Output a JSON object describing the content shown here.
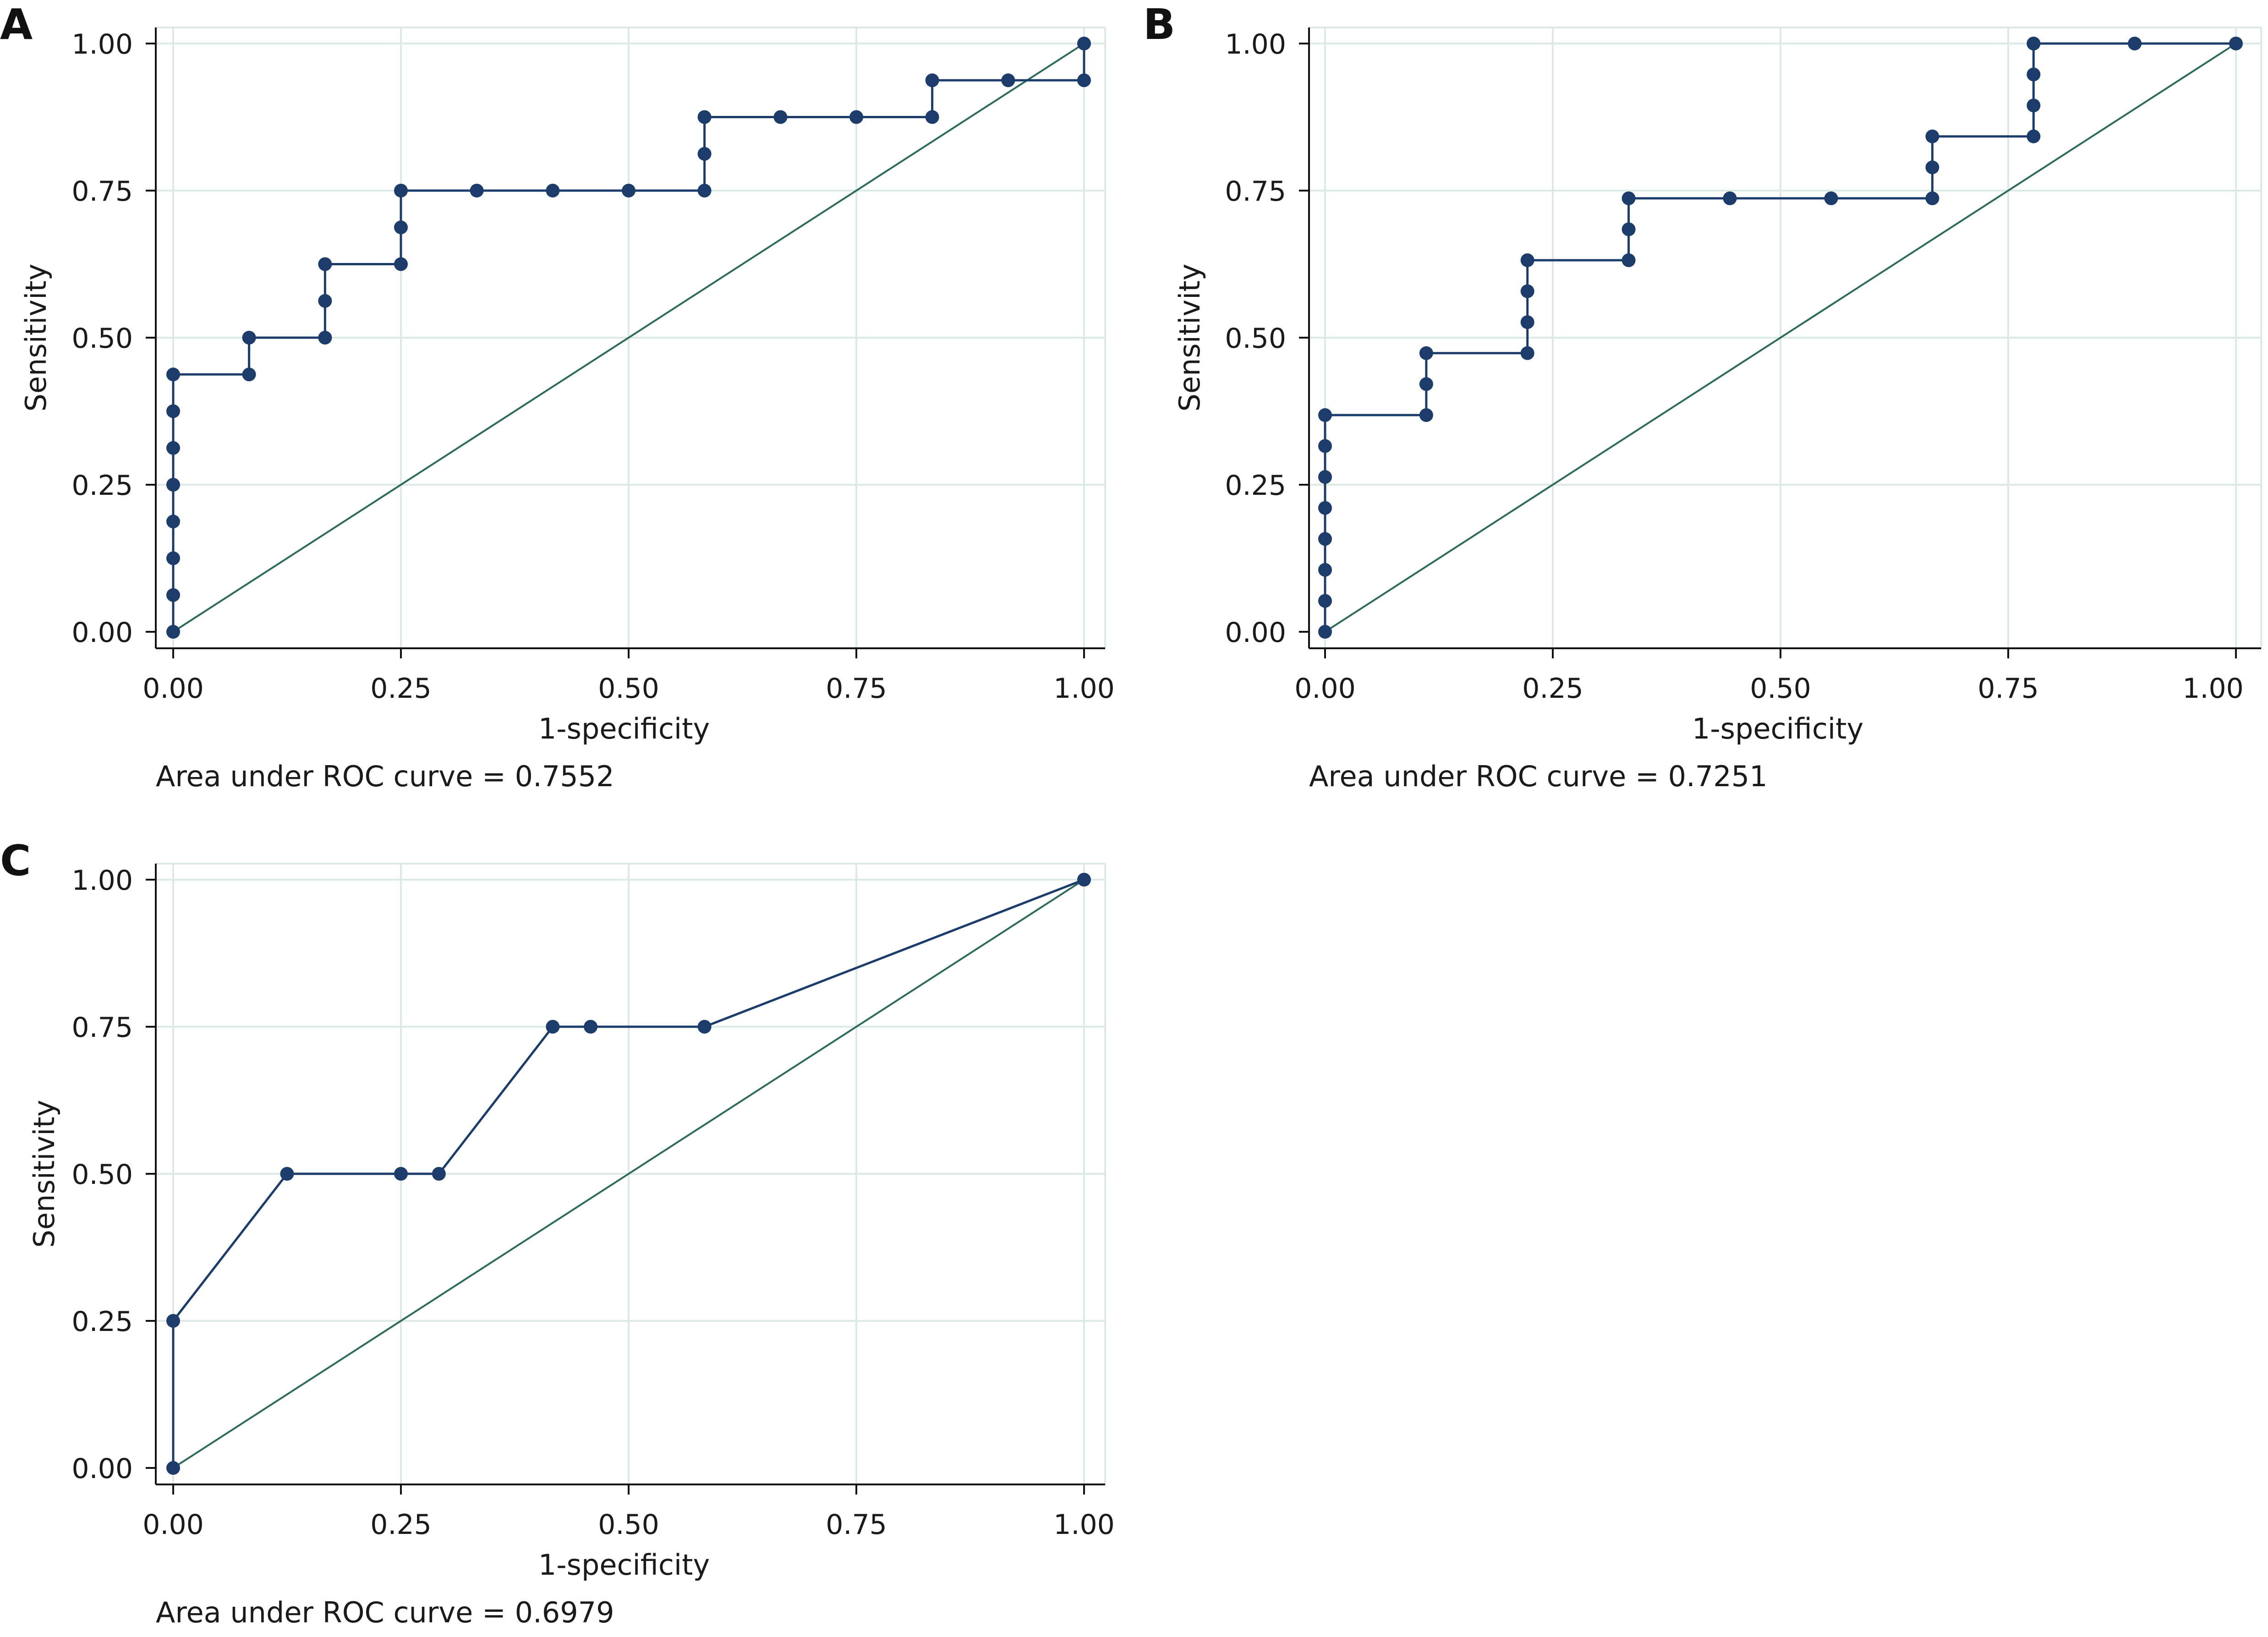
{
  "chart_data": [
    {
      "panel": "A",
      "type": "line",
      "xlabel": "1-specificity",
      "ylabel": "Sensitivity",
      "xlim": [
        0,
        1
      ],
      "ylim": [
        0,
        1
      ],
      "xticks": [
        "0.00",
        "0.25",
        "0.50",
        "0.75",
        "1.00"
      ],
      "yticks": [
        "0.00",
        "0.25",
        "0.50",
        "0.75",
        "1.00"
      ],
      "grid": true,
      "note": "Area under ROC curve = 0.7552",
      "colors": {
        "curve": "#1c3d6b",
        "marker": "#1c3d6b",
        "reference": "#2e6b5c",
        "grid": "#dce9e6"
      },
      "series": [
        {
          "x": [
            0,
            0,
            0,
            0,
            0,
            0,
            0,
            0,
            0.0833,
            0.0833,
            0.1667,
            0.1667,
            0.1667,
            0.25,
            0.25,
            0.25,
            0.3333,
            0.4167,
            0.5,
            0.5833,
            0.5833,
            0.5833,
            0.6667,
            0.75,
            0.8333,
            0.8333,
            0.9167,
            1,
            1
          ],
          "y": [
            0,
            0.0625,
            0.125,
            0.1875,
            0.25,
            0.3125,
            0.375,
            0.4375,
            0.4375,
            0.5,
            0.5,
            0.5625,
            0.625,
            0.625,
            0.6875,
            0.75,
            0.75,
            0.75,
            0.75,
            0.75,
            0.8125,
            0.875,
            0.875,
            0.875,
            0.875,
            0.9375,
            0.9375,
            0.9375,
            1
          ]
        }
      ]
    },
    {
      "panel": "B",
      "type": "line",
      "xlabel": "1-specificity",
      "ylabel": "Sensitivity",
      "xlim": [
        0,
        1
      ],
      "ylim": [
        0,
        1
      ],
      "xticks": [
        "0.00",
        "0.25",
        "0.50",
        "0.75",
        "1.00"
      ],
      "yticks": [
        "0.00",
        "0.25",
        "0.50",
        "0.75",
        "1.00"
      ],
      "grid": true,
      "note": "Area under ROC curve = 0.7251",
      "colors": {
        "curve": "#1c3d6b",
        "marker": "#1c3d6b",
        "reference": "#2e6b5c",
        "grid": "#dce9e6"
      },
      "series": [
        {
          "x": [
            0,
            0,
            0,
            0,
            0,
            0,
            0,
            0,
            0.1111,
            0.1111,
            0.1111,
            0.2222,
            0.2222,
            0.2222,
            0.2222,
            0.3333,
            0.3333,
            0.3333,
            0.4444,
            0.5556,
            0.6667,
            0.6667,
            0.6667,
            0.7778,
            0.7778,
            0.7778,
            0.7778,
            0.7778,
            0.8889,
            1
          ],
          "y": [
            0,
            0.0526,
            0.1053,
            0.1579,
            0.2105,
            0.2632,
            0.3158,
            0.3684,
            0.3684,
            0.4211,
            0.4737,
            0.4737,
            0.5263,
            0.5789,
            0.6316,
            0.6316,
            0.6842,
            0.7368,
            0.7368,
            0.7368,
            0.7368,
            0.7895,
            0.8421,
            0.8421,
            0.8947,
            0.9474,
            1,
            1,
            1,
            1
          ]
        }
      ]
    },
    {
      "panel": "C",
      "type": "line",
      "xlabel": "1-specificity",
      "ylabel": "Sensitivity",
      "xlim": [
        0,
        1
      ],
      "ylim": [
        0,
        1
      ],
      "xticks": [
        "0.00",
        "0.25",
        "0.50",
        "0.75",
        "1.00"
      ],
      "yticks": [
        "0.00",
        "0.25",
        "0.50",
        "0.75",
        "1.00"
      ],
      "grid": true,
      "note": "Area under ROC curve = 0.6979",
      "colors": {
        "curve": "#1c3d6b",
        "marker": "#1c3d6b",
        "reference": "#2e6b5c",
        "grid": "#dce9e6"
      },
      "series": [
        {
          "x": [
            0,
            0,
            0.125,
            0.25,
            0.2917,
            0.4167,
            0.4583,
            0.5833,
            1
          ],
          "y": [
            0,
            0.25,
            0.5,
            0.5,
            0.5,
            0.75,
            0.75,
            0.75,
            1
          ]
        }
      ]
    }
  ]
}
